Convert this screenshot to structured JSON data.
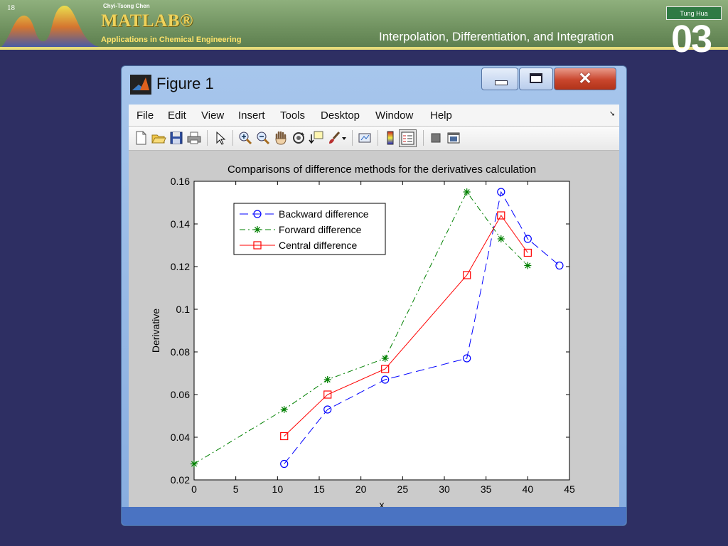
{
  "slide": {
    "page_number": "18",
    "author": "Chyi-Tsong Chen",
    "logo": "MATLAB®",
    "subtitle": "Applications in Chemical Engineering",
    "section_title": "Interpolation, Differentiation, and Integration",
    "chapter": "03",
    "university": "Tung Hua",
    "colors": {
      "background": "#2e2f63",
      "header": "#7fa26e",
      "header_line": "#e6dc7a",
      "logo": "#f0d25a"
    }
  },
  "window": {
    "title": "Figure 1",
    "controls": [
      "minimize",
      "maximize",
      "close"
    ],
    "menu": [
      "File",
      "Edit",
      "View",
      "Insert",
      "Tools",
      "Desktop",
      "Window",
      "Help"
    ],
    "toolbar": [
      "new-figure-icon",
      "open-file-icon",
      "save-icon",
      "print-icon",
      "pointer-icon",
      "zoom-in-icon",
      "zoom-out-icon",
      "pan-hand-icon",
      "rotate-3d-icon",
      "data-cursor-icon",
      "brush-icon",
      "brush-dropdown-icon",
      "link-plot-icon",
      "colorbar-icon",
      "legend-icon",
      "hide-plot-tools-icon",
      "show-plot-tools-icon"
    ]
  },
  "chart_data": {
    "type": "line",
    "title": "Comparisons of difference methods for the derivatives calculation",
    "xlabel": "x",
    "ylabel": "Derivative",
    "xlim": [
      0,
      45
    ],
    "ylim": [
      0.02,
      0.16
    ],
    "xticks": [
      0,
      5,
      10,
      15,
      20,
      25,
      30,
      35,
      40,
      45
    ],
    "yticks": [
      0.02,
      0.04,
      0.06,
      0.08,
      0.1,
      0.12,
      0.14,
      0.16
    ],
    "xtick_labels": [
      "0",
      "5",
      "10",
      "15",
      "20",
      "25",
      "30",
      "35",
      "40",
      "45"
    ],
    "ytick_labels": [
      "0.02",
      "0.04",
      "0.06",
      "0.08",
      "0.1",
      "0.12",
      "0.14",
      "0.16"
    ],
    "grid": false,
    "legend_position": "top-left",
    "series": [
      {
        "name": "Backward difference",
        "color": "#0000ff",
        "marker": "circle",
        "dash": "12,6",
        "x": [
          10.8,
          16,
          22.9,
          32.7,
          36.8,
          40,
          43.8
        ],
        "y": [
          0.0275,
          0.053,
          0.067,
          0.077,
          0.155,
          0.133,
          0.1205
        ]
      },
      {
        "name": "Forward difference",
        "color": "#008000",
        "marker": "star",
        "dash": "8,4,2,4",
        "x": [
          0,
          10.8,
          16,
          22.9,
          32.7,
          36.8,
          40
        ],
        "y": [
          0.0275,
          0.053,
          0.067,
          0.077,
          0.155,
          0.133,
          0.1205
        ]
      },
      {
        "name": "Central difference",
        "color": "#ff0000",
        "marker": "square",
        "dash": "",
        "x": [
          10.8,
          16,
          22.9,
          32.7,
          36.8,
          40
        ],
        "y": [
          0.0405,
          0.06,
          0.072,
          0.116,
          0.144,
          0.1265
        ]
      }
    ]
  }
}
